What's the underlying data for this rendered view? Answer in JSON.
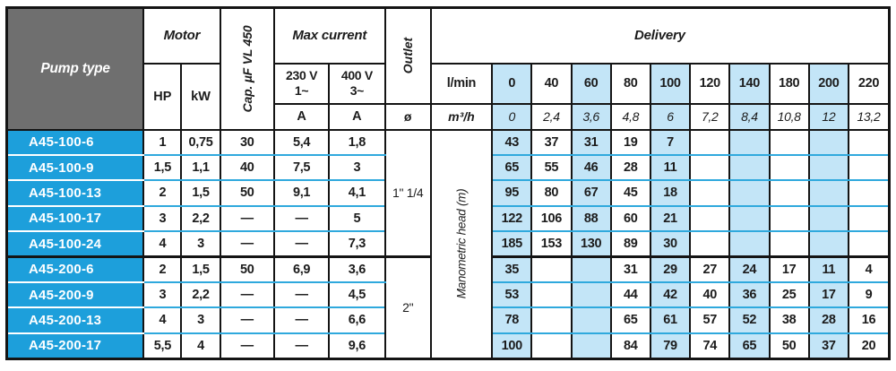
{
  "colors": {
    "cyan": "#1d9fdb",
    "stripe": "#c3e5f7",
    "blueline": "#2fa9dd",
    "gray": "#6f6f6f",
    "border": "#141414"
  },
  "table": {
    "headers": {
      "pump_type": "Pump type",
      "motor": "Motor",
      "hp": "HP",
      "kw": "kW",
      "cap": "Cap. µF VL 450",
      "max_current": "Max current",
      "v230": "230 V",
      "v230_phase": "1~",
      "v400": "400 V",
      "v400_phase": "3~",
      "amp": "A",
      "outlet": "Outlet",
      "diameter": "ø",
      "delivery": "Delivery",
      "lmin": "l/min",
      "m3h": "m³/h",
      "manometric": "Manometric head (m)"
    },
    "flow_lmin": [
      "0",
      "40",
      "60",
      "80",
      "100",
      "120",
      "140",
      "180",
      "200",
      "220"
    ],
    "flow_m3h": [
      "0",
      "2,4",
      "3,6",
      "4,8",
      "6",
      "7,2",
      "8,4",
      "10,8",
      "12",
      "13,2"
    ],
    "groups": [
      {
        "outlet": "1\" 1/4",
        "rows": [
          {
            "pump": "A45-100-6",
            "hp": "1",
            "kw": "0,75",
            "cap": "30",
            "a230": "5,4",
            "a400": "1,8",
            "head": [
              "43",
              "37",
              "31",
              "19",
              "7",
              "",
              "",
              "",
              "",
              ""
            ]
          },
          {
            "pump": "A45-100-9",
            "hp": "1,5",
            "kw": "1,1",
            "cap": "40",
            "a230": "7,5",
            "a400": "3",
            "head": [
              "65",
              "55",
              "46",
              "28",
              "11",
              "",
              "",
              "",
              "",
              ""
            ]
          },
          {
            "pump": "A45-100-13",
            "hp": "2",
            "kw": "1,5",
            "cap": "50",
            "a230": "9,1",
            "a400": "4,1",
            "head": [
              "95",
              "80",
              "67",
              "45",
              "18",
              "",
              "",
              "",
              "",
              ""
            ]
          },
          {
            "pump": "A45-100-17",
            "hp": "3",
            "kw": "2,2",
            "cap": "—",
            "a230": "—",
            "a400": "5",
            "head": [
              "122",
              "106",
              "88",
              "60",
              "21",
              "",
              "",
              "",
              "",
              ""
            ]
          },
          {
            "pump": "A45-100-24",
            "hp": "4",
            "kw": "3",
            "cap": "—",
            "a230": "—",
            "a400": "7,3",
            "head": [
              "185",
              "153",
              "130",
              "89",
              "30",
              "",
              "",
              "",
              "",
              ""
            ]
          }
        ]
      },
      {
        "outlet": "2\"",
        "rows": [
          {
            "pump": "A45-200-6",
            "hp": "2",
            "kw": "1,5",
            "cap": "50",
            "a230": "6,9",
            "a400": "3,6",
            "head": [
              "35",
              "",
              "",
              "31",
              "29",
              "27",
              "24",
              "17",
              "11",
              "4"
            ]
          },
          {
            "pump": "A45-200-9",
            "hp": "3",
            "kw": "2,2",
            "cap": "—",
            "a230": "—",
            "a400": "4,5",
            "head": [
              "53",
              "",
              "",
              "44",
              "42",
              "40",
              "36",
              "25",
              "17",
              "9"
            ]
          },
          {
            "pump": "A45-200-13",
            "hp": "4",
            "kw": "3",
            "cap": "—",
            "a230": "—",
            "a400": "6,6",
            "head": [
              "78",
              "",
              "",
              "65",
              "61",
              "57",
              "52",
              "38",
              "28",
              "16"
            ]
          },
          {
            "pump": "A45-200-17",
            "hp": "5,5",
            "kw": "4",
            "cap": "—",
            "a230": "—",
            "a400": "9,6",
            "head": [
              "100",
              "",
              "",
              "84",
              "79",
              "74",
              "65",
              "50",
              "37",
              "20"
            ]
          }
        ]
      }
    ]
  }
}
